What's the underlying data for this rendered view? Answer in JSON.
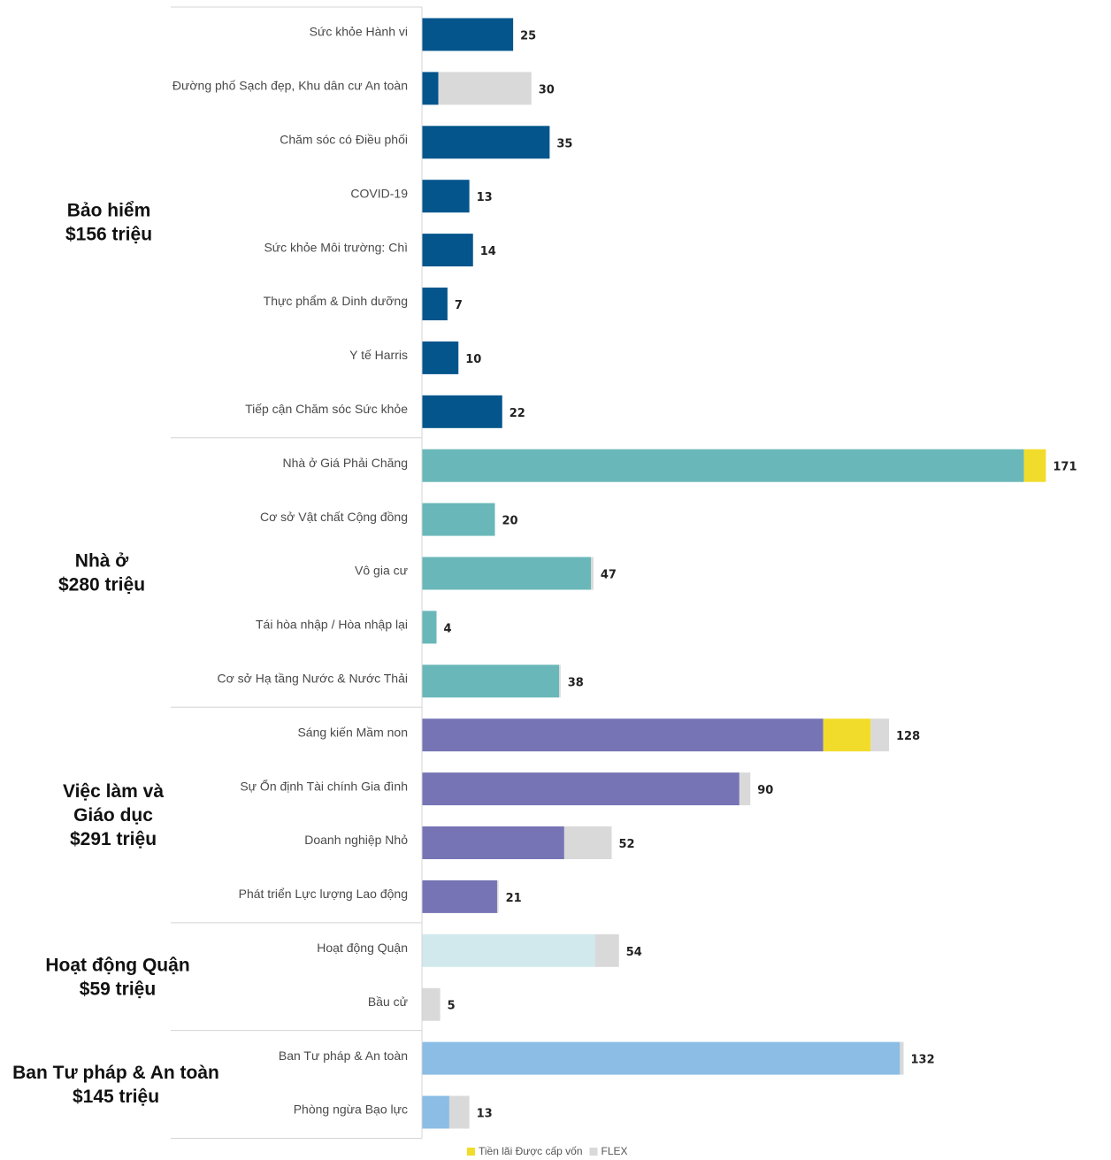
{
  "chart_data": {
    "type": "bar",
    "orientation": "horizontal",
    "stacked": true,
    "xlim": [
      0,
      171
    ],
    "grid": false,
    "legend_position": "bottom",
    "legend": [
      {
        "name": "Tiền lãi Được cấp vốn",
        "color": "#f2dc2b"
      },
      {
        "name": "FLEX",
        "color": "#d9d9d9"
      }
    ],
    "groups": [
      {
        "label_lines": [
          "Bảo hiểm",
          "$156 triệu"
        ],
        "color": "#03558c",
        "items": [
          {
            "label": "Sức khỏe Hành vi",
            "total": 25,
            "main": 25,
            "interest": 0,
            "flex": 0
          },
          {
            "label": "Đường phố Sạch đẹp, Khu dân cư An toàn",
            "total": 30,
            "main": 4.5,
            "interest": 0,
            "flex": 25.5
          },
          {
            "label": "Chăm sóc có Điều phối",
            "total": 35,
            "main": 35,
            "interest": 0,
            "flex": 0
          },
          {
            "label": "COVID-19",
            "total": 13,
            "main": 13,
            "interest": 0,
            "flex": 0
          },
          {
            "label": "Sức khỏe Môi trường: Chì",
            "total": 14,
            "main": 14,
            "interest": 0,
            "flex": 0
          },
          {
            "label": "Thực phẩm & Dinh dưỡng",
            "total": 7,
            "main": 7,
            "interest": 0,
            "flex": 0
          },
          {
            "label": "Y tế Harris",
            "total": 10,
            "main": 10,
            "interest": 0,
            "flex": 0
          },
          {
            "label": "Tiếp cận Chăm sóc Sức khỏe",
            "total": 22,
            "main": 22,
            "interest": 0,
            "flex": 0
          }
        ]
      },
      {
        "label_lines": [
          "Nhà ở",
          "$280 triệu"
        ],
        "color": "#6ab7b9",
        "items": [
          {
            "label": "Nhà ở Giá Phải Chăng",
            "total": 171,
            "main": 165,
            "interest": 6,
            "flex": 0
          },
          {
            "label": "Cơ sở Vật chất Cộng đồng",
            "total": 20,
            "main": 20,
            "interest": 0,
            "flex": 0
          },
          {
            "label": "Vô gia cư",
            "total": 47,
            "main": 46.3,
            "interest": 0,
            "flex": 0.7
          },
          {
            "label": "Tái hòa nhập / Hòa nhập lại",
            "total": 4,
            "main": 4,
            "interest": 0,
            "flex": 0
          },
          {
            "label": "Cơ sở Hạ tầng Nước & Nước Thải",
            "total": 38,
            "main": 37.6,
            "interest": 0,
            "flex": 0.4
          }
        ]
      },
      {
        "label_lines": [
          "Việc làm và",
          "Giáo dục",
          "$291 triệu"
        ],
        "color": "#7674b5",
        "items": [
          {
            "label": "Sáng kiến Mầm non",
            "total": 128,
            "main": 110,
            "interest": 13,
            "flex": 5
          },
          {
            "label": "Sự Ổn định Tài chính Gia đình",
            "total": 90,
            "main": 87,
            "interest": 0,
            "flex": 3
          },
          {
            "label": "Doanh nghiệp Nhỏ",
            "total": 52,
            "main": 39,
            "interest": 0,
            "flex": 13
          },
          {
            "label": "Phát triển Lực lượng Lao động",
            "total": 21,
            "main": 20.6,
            "interest": 0,
            "flex": 0.4
          }
        ]
      },
      {
        "label_lines": [
          "Hoạt động Quận",
          "$59 triệu"
        ],
        "color": "#d1e9ec",
        "items": [
          {
            "label": "Hoạt động Quận",
            "total": 54,
            "main": 47.5,
            "interest": 0,
            "flex": 6.5
          },
          {
            "label": "Bầu cử",
            "total": 5,
            "main": 0,
            "interest": 0,
            "flex": 5
          }
        ]
      },
      {
        "label_lines": [
          "Ban Tư pháp & An toàn",
          "$145 triệu"
        ],
        "color": "#8bbde5",
        "items": [
          {
            "label": "Ban Tư pháp & An toàn",
            "total": 132,
            "main": 131,
            "interest": 0,
            "flex": 1
          },
          {
            "label": "Phòng ngừa Bạo lực",
            "total": 13,
            "main": 7.5,
            "interest": 0,
            "flex": 5.5
          }
        ]
      }
    ]
  }
}
